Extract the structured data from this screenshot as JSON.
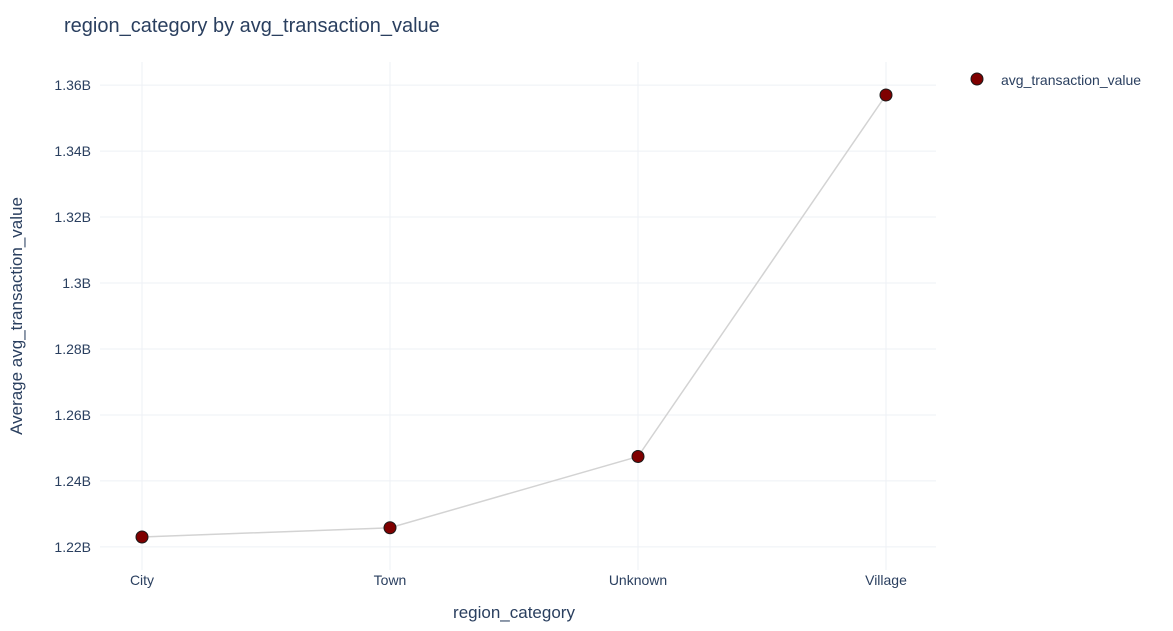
{
  "chart_data": {
    "type": "line",
    "title": "region_category by avg_transaction_value",
    "xlabel": "region_category",
    "ylabel": "Average avg_transaction_value",
    "categories": [
      "City",
      "Town",
      "Unknown",
      "Village"
    ],
    "series": [
      {
        "name": "avg_transaction_value",
        "values": [
          1223000000,
          1225800000,
          1247400000,
          1357000000
        ]
      }
    ],
    "ylim": [
      1213000000,
      1367000000
    ],
    "yticks": [
      1220000000,
      1240000000,
      1260000000,
      1280000000,
      1300000000,
      1320000000,
      1340000000,
      1360000000
    ],
    "ytick_labels": [
      "1.22B",
      "1.24B",
      "1.26B",
      "1.28B",
      "1.3B",
      "1.32B",
      "1.34B",
      "1.36B"
    ],
    "grid": true,
    "legend_position": "top-right",
    "colors": {
      "marker_fill": "#7f0000",
      "marker_stroke": "#1a1a1a",
      "line": "#d3d3d3",
      "grid": "#eef0f5",
      "text": "#2a3f5f"
    }
  }
}
